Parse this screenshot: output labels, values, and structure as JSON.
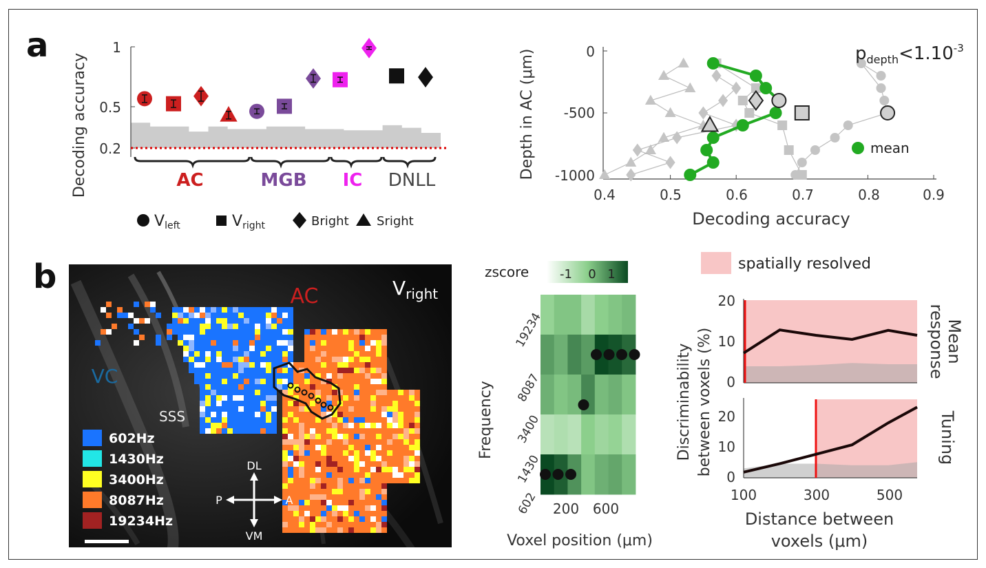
{
  "panel_labels": {
    "a": "a",
    "b": "b"
  },
  "colors": {
    "ac_red": "#cc1f1f",
    "mgb_purple": "#7a4a9a",
    "ic_magenta": "#ee22ee",
    "dnll_black": "#111111",
    "chance_red": "#dd0000",
    "null_gray": "#cccccc",
    "mean_green": "#22aa22",
    "gray_marker": "#bbbbbb",
    "freq_602": "#1a74ff",
    "freq_1430": "#22e6e6",
    "freq_3400": "#ffff22",
    "freq_8087": "#ff7a2a",
    "freq_19234": "#a22222",
    "resolved_pink": "#f8c6c6",
    "threshold_red": "#ee1111"
  },
  "panel_a_left": {
    "ylabel": "Decoding accuracy",
    "yticks": [
      "1",
      "0.5",
      "0.2"
    ],
    "group_labels": [
      "AC",
      "MGB",
      "IC",
      "DNLL"
    ],
    "legend": [
      {
        "icon": "circle",
        "main": "V",
        "sub": "left"
      },
      {
        "icon": "square",
        "main": "V",
        "sub": "right"
      },
      {
        "icon": "diamond",
        "main": "B",
        "sub": "right"
      },
      {
        "icon": "triangle",
        "main": "S",
        "sub": "right"
      }
    ]
  },
  "panel_a_right": {
    "ylabel": "Depth in AC (μm)",
    "xlabel": "Decoding accuracy",
    "xticks": [
      "0.4",
      "0.5",
      "0.6",
      "0.7",
      "0.8",
      "0.9"
    ],
    "yticks": [
      "0",
      "-500",
      "-1000"
    ],
    "annotation_main": "p",
    "annotation_sub": "depth",
    "annotation_rest": "<1.10",
    "annotation_sup": "-3",
    "legend_mean": "mean"
  },
  "panel_b_map": {
    "region_ac": "AC",
    "region_vc": "VC",
    "region_sss": "SSS",
    "condition_main": "V",
    "condition_sub": "right",
    "freq_legend": [
      "602Hz",
      "1430Hz",
      "3400Hz",
      "8087Hz",
      "19234Hz"
    ],
    "compass": {
      "top": "DL",
      "bottom": "VM",
      "left": "P",
      "right": "A"
    }
  },
  "panel_b_heatmap": {
    "colorbar_label": "zscore",
    "colorbar_ticks": [
      "-1",
      "0",
      "1"
    ],
    "ylabel": "Frequency",
    "yticks": [
      "19234",
      "8087",
      "3400",
      "1430",
      "602"
    ],
    "xticks": [
      "200",
      "600"
    ],
    "xlabel": "Voxel position (μm)"
  },
  "panel_b_disc": {
    "legend_label": "spatially resolved",
    "ylabel_line1": "Discriminability",
    "ylabel_line2": "between voxels (%)",
    "top_title_line1": "Mean",
    "top_title_line2": "response",
    "bottom_title": "Tuning",
    "top_yticks": [
      "20",
      "10",
      "0"
    ],
    "bottom_yticks": [
      "20",
      "10",
      "0"
    ],
    "xticks": [
      "100",
      "300",
      "500"
    ],
    "xlabel_line1": "Distance between",
    "xlabel_line2": "voxels (μm)"
  },
  "chart_data": [
    {
      "type": "scatter",
      "panel": "a-left",
      "ylabel": "Decoding accuracy",
      "ylim": [
        0.15,
        1.0
      ],
      "chance_level": 0.2,
      "groups": [
        {
          "name": "AC",
          "points": [
            {
              "marker": "V_left",
              "value": 0.59,
              "err": 0.03
            },
            {
              "marker": "V_right",
              "value": 0.55,
              "err": 0.03
            },
            {
              "marker": "B_right",
              "value": 0.61,
              "err": 0.04
            },
            {
              "marker": "S_right",
              "value": 0.46,
              "err": 0.03
            }
          ]
        },
        {
          "name": "MGB",
          "points": [
            {
              "marker": "V_left",
              "value": 0.49,
              "err": 0.02
            },
            {
              "marker": "V_right",
              "value": 0.53,
              "err": 0.02
            }
          ]
        },
        {
          "name": "MGB",
          "points": [
            {
              "marker": "B_right",
              "value": 0.75,
              "err": 0.03
            }
          ]
        },
        {
          "name": "IC",
          "points": [
            {
              "marker": "V_right",
              "value": 0.74,
              "err": 0.02
            },
            {
              "marker": "B_right",
              "value": 0.99,
              "err": 0.01
            }
          ]
        },
        {
          "name": "DNLL",
          "points": [
            {
              "marker": "V_right",
              "value": 0.77,
              "err": 0
            },
            {
              "marker": "B_right",
              "value": 0.76,
              "err": 0
            }
          ]
        }
      ],
      "null_distribution_upper": [
        0.4,
        0.37,
        0.37,
        0.33,
        0.37,
        0.35,
        0.35,
        0.37,
        0.37,
        0.35,
        0.35,
        0.34,
        0.34,
        0.38,
        0.36,
        0.32
      ]
    },
    {
      "type": "line",
      "panel": "a-right",
      "xlabel": "Decoding accuracy",
      "ylabel": "Depth in AC (μm)",
      "xlim": [
        0.4,
        0.9
      ],
      "ylim": [
        -1000,
        0
      ],
      "series": [
        {
          "name": "mean",
          "color": "#22aa22",
          "points": [
            [
              0.565,
              -100
            ],
            [
              0.63,
              -200
            ],
            [
              0.645,
              -300
            ],
            [
              0.665,
              -400
            ],
            [
              0.66,
              -500
            ],
            [
              0.61,
              -600
            ],
            [
              0.565,
              -700
            ],
            [
              0.555,
              -800
            ],
            [
              0.565,
              -900
            ],
            [
              0.53,
              -1000
            ]
          ]
        },
        {
          "color": "#bbbbbb",
          "marker": "circle",
          "points": [
            [
              0.82,
              -200
            ],
            [
              0.79,
              -100
            ],
            [
              0.82,
              -300
            ],
            [
              0.825,
              -400
            ],
            [
              0.83,
              -500
            ],
            [
              0.77,
              -600
            ],
            [
              0.75,
              -700
            ],
            [
              0.72,
              -800
            ],
            [
              0.7,
              -900
            ],
            [
              0.69,
              -1000
            ]
          ]
        },
        {
          "color": "#bbbbbb",
          "marker": "triangle",
          "points": [
            [
              0.52,
              -100
            ],
            [
              0.49,
              -200
            ],
            [
              0.53,
              -300
            ],
            [
              0.47,
              -400
            ],
            [
              0.5,
              -500
            ],
            [
              0.55,
              -600
            ],
            [
              0.49,
              -700
            ],
            [
              0.47,
              -800
            ],
            [
              0.44,
              -900
            ],
            [
              0.4,
              -1000
            ]
          ]
        },
        {
          "color": "#bbbbbb",
          "marker": "diamond",
          "points": [
            [
              0.57,
              -200
            ],
            [
              0.6,
              -300
            ],
            [
              0.58,
              -400
            ],
            [
              0.55,
              -500
            ],
            [
              0.6,
              -600
            ],
            [
              0.51,
              -700
            ],
            [
              0.45,
              -800
            ],
            [
              0.5,
              -900
            ],
            [
              0.44,
              -1000
            ]
          ]
        },
        {
          "color": "#bbbbbb",
          "marker": "square",
          "points": [
            [
              0.57,
              -100
            ],
            [
              0.63,
              -300
            ],
            [
              0.61,
              -400
            ],
            [
              0.62,
              -500
            ],
            [
              0.67,
              -600
            ],
            [
              0.68,
              -800
            ],
            [
              0.7,
              -1000
            ]
          ]
        }
      ],
      "mean_markers_outlined": [
        {
          "marker": "circle",
          "x": 0.665,
          "y": -400
        },
        {
          "marker": "circle",
          "x": 0.83,
          "y": -500
        },
        {
          "marker": "diamond",
          "x": 0.63,
          "y": -400
        },
        {
          "marker": "square",
          "x": 0.7,
          "y": -500
        },
        {
          "marker": "triangle",
          "x": 0.56,
          "y": -600
        }
      ]
    },
    {
      "type": "heatmap",
      "panel": "b-middle",
      "xlabel": "Voxel position (μm)",
      "ylabel": "Frequency",
      "rows": [
        "19234",
        "8087",
        "3400",
        "1430",
        "602"
      ],
      "values": [
        [
          0.2,
          0.4,
          0.4,
          0.0,
          0.3,
          0.4,
          0.5
        ],
        [
          0.8,
          0.6,
          1.0,
          0.8,
          1.6,
          1.5,
          1.3
        ],
        [
          0.6,
          0.4,
          0.5,
          1.0,
          0.5,
          0.6,
          0.4
        ],
        [
          -0.2,
          -0.1,
          -0.2,
          0.3,
          0.1,
          0.2,
          -0.1
        ],
        [
          1.6,
          1.4,
          0.9,
          0.4,
          0.6,
          0.7,
          0.5
        ]
      ],
      "best_frequency_dots": [
        4,
        4,
        4,
        2,
        1,
        1,
        1,
        1
      ]
    },
    {
      "type": "line",
      "panel": "b-right-top",
      "title": "Mean response",
      "xlim": [
        100,
        580
      ],
      "ylim": [
        0,
        20
      ],
      "x": [
        100,
        200,
        300,
        400,
        500,
        580
      ],
      "series": [
        {
          "values": [
            7.2,
            12.8,
            11.5,
            10.5,
            12.7,
            11.5
          ]
        }
      ],
      "null_upper": [
        4,
        4,
        4.3,
        4.8,
        4.5,
        4.5
      ],
      "threshold_x": 100
    },
    {
      "type": "line",
      "panel": "b-right-bottom",
      "title": "Tuning",
      "xlim": [
        100,
        580
      ],
      "ylim": [
        0,
        25
      ],
      "x": [
        100,
        200,
        300,
        400,
        500,
        580
      ],
      "series": [
        {
          "values": [
            1.8,
            4.5,
            7.5,
            10.5,
            17.5,
            22.5
          ]
        }
      ],
      "null_upper": [
        3,
        4.5,
        4.5,
        4,
        4,
        5
      ],
      "threshold_x": 300
    }
  ]
}
